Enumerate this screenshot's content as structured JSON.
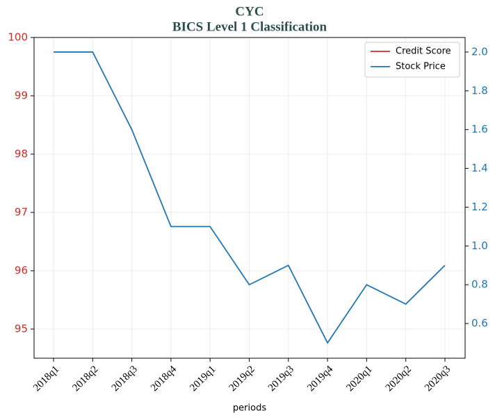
{
  "chart_data": {
    "type": "line",
    "title": "CYC",
    "subtitle": "BICS Level 1 Classification",
    "xlabel": "periods",
    "categories": [
      "2018q1",
      "2018q2",
      "2018q3",
      "2018q4",
      "2019q1",
      "2019q2",
      "2019q3",
      "2019q4",
      "2020q1",
      "2020q2",
      "2020q3"
    ],
    "series": [
      {
        "name": "Credit Score",
        "color": "#d62728",
        "values": [
          null,
          null,
          null,
          null,
          null,
          null,
          null,
          null,
          null,
          null,
          null
        ]
      },
      {
        "name": "Stock Price",
        "color": "#1f77b4",
        "axis": "y2",
        "values": [
          2.0,
          2.0,
          1.6,
          1.1,
          1.1,
          0.8,
          0.9,
          0.5,
          0.8,
          0.7,
          0.9
        ]
      }
    ],
    "ylim": [
      94.5,
      100
    ],
    "yticks": [
      95,
      96,
      97,
      98,
      99,
      100
    ],
    "y2lim": [
      0.421,
      2.075
    ],
    "y2ticks": [
      {
        "value": 0.6,
        "label": "0.6"
      },
      {
        "value": 0.8,
        "label": "0.8"
      },
      {
        "value": 1.0,
        "label": "1.0"
      },
      {
        "value": 1.2,
        "label": "1.2"
      },
      {
        "value": 1.4,
        "label": "1.4"
      },
      {
        "value": 1.6,
        "label": "1.6"
      },
      {
        "value": 1.8,
        "label": "1.8"
      },
      {
        "value": 2.0,
        "label": "2.0"
      }
    ],
    "ycolor": "#d62728",
    "y2color": "#1f77b4",
    "grid": true,
    "legend": "upper right"
  }
}
